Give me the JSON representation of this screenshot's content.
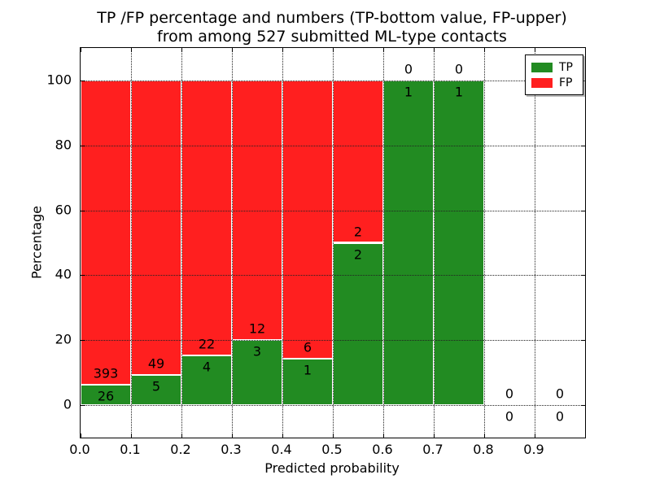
{
  "figure": {
    "title_line1": "TP /FP percentage and numbers (TP-bottom value, FP-upper)",
    "title_line2": "from among 527 submitted ML-type contacts",
    "xlabel": "Predicted probability",
    "ylabel": "Percentage"
  },
  "legend": {
    "position": "upper right",
    "items": [
      {
        "label": "TP",
        "color": "#228b22"
      },
      {
        "label": "FP",
        "color": "#ff1f1f"
      }
    ]
  },
  "chart_data": {
    "type": "bar",
    "stacked": true,
    "normalized_to_percent": true,
    "title": "TP /FP percentage and numbers (TP-bottom value, FP-upper) from among 527 submitted ML-type contacts",
    "xlabel": "Predicted probability",
    "ylabel": "Percentage",
    "total_contacts": 527,
    "categories": [
      "0.0-0.1",
      "0.1-0.2",
      "0.2-0.3",
      "0.3-0.4",
      "0.4-0.5",
      "0.5-0.6",
      "0.6-0.7",
      "0.7-0.8",
      "0.8-0.9",
      "0.9-1.0"
    ],
    "series": [
      {
        "name": "TP",
        "color": "#228b22",
        "values": [
          26,
          5,
          4,
          3,
          1,
          2,
          1,
          1,
          0,
          0
        ]
      },
      {
        "name": "FP",
        "color": "#ff1f1f",
        "values": [
          393,
          49,
          22,
          12,
          6,
          2,
          0,
          0,
          0,
          0
        ]
      }
    ],
    "tp_percent_of_bin": [
      6.2,
      9.3,
      15.4,
      20.0,
      14.3,
      50.0,
      100.0,
      100.0,
      null,
      null
    ],
    "xticks": [
      "0.0",
      "0.1",
      "0.2",
      "0.3",
      "0.4",
      "0.5",
      "0.6",
      "0.7",
      "0.8",
      "0.9"
    ],
    "yticks": [
      0,
      20,
      40,
      60,
      80,
      100
    ],
    "xlim": [
      0.0,
      1.0
    ],
    "ylim": [
      -10,
      110
    ],
    "grid": "dotted",
    "legend_position": "upper right",
    "bar_edge_color": "#ffffff",
    "axis_color": "#000000"
  }
}
